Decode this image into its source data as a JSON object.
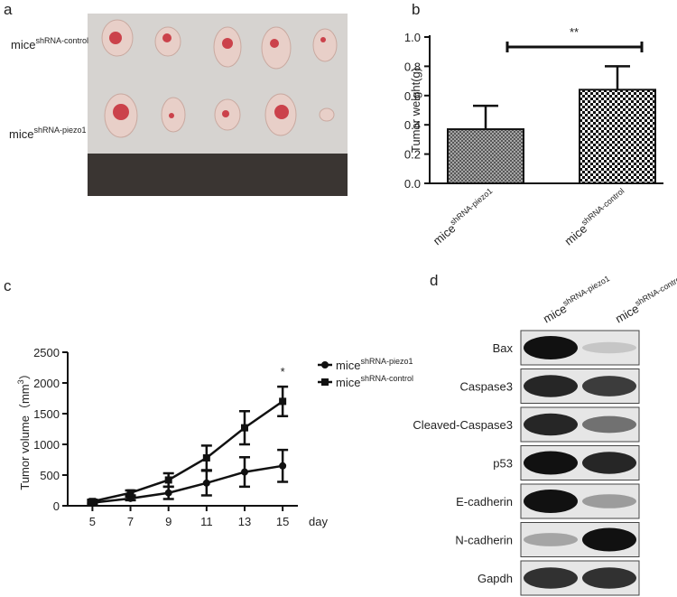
{
  "panel_labels": [
    "a",
    "b",
    "c",
    "d"
  ],
  "photo": {
    "row_labels": [
      {
        "base": "mice",
        "sup": "shRNA-control"
      },
      {
        "base": "mice",
        "sup": "shRNA-piezo1"
      }
    ]
  },
  "chart_data": [
    {
      "type": "bar",
      "ylabel": "Tumor weight(g)",
      "categories": [
        {
          "base": "mice",
          "sup": "shRNA-piezo1"
        },
        {
          "base": "mice",
          "sup": "shRNA-control"
        }
      ],
      "values": [
        0.37,
        0.64
      ],
      "errors": [
        0.16,
        0.16
      ],
      "ylim": [
        0,
        1.0
      ],
      "yticks": [
        {
          "value": 0,
          "label": "0.0"
        },
        0.2,
        0.4,
        0.6,
        0.8,
        {
          "value": 1.0,
          "label": "1.0"
        }
      ],
      "annotation": "**"
    },
    {
      "type": "line",
      "ylabel": {
        "base": "Tumor volume（mm",
        "sup": "3",
        "tail": "）"
      },
      "xlabel": "day",
      "x": [
        5,
        7,
        9,
        11,
        13,
        15
      ],
      "xlim": [
        3.7,
        15.8
      ],
      "xticks": [
        5,
        7,
        9,
        11,
        13,
        15
      ],
      "ylim": [
        0,
        2500
      ],
      "yticks": [
        0,
        500,
        1000,
        1500,
        2000,
        2500
      ],
      "series": [
        {
          "name": {
            "base": "mice",
            "sup": "shRNA-piezo1"
          },
          "marker": "circle",
          "color": "#111",
          "values": [
            50,
            120,
            210,
            370,
            550,
            650
          ],
          "errors": [
            20,
            30,
            100,
            200,
            240,
            260
          ]
        },
        {
          "name": {
            "base": "mice",
            "sup": "shRNA-control"
          },
          "marker": "square",
          "color": "#111",
          "values": [
            70,
            210,
            420,
            780,
            1270,
            1700
          ],
          "errors": [
            30,
            40,
            110,
            200,
            270,
            240
          ]
        }
      ],
      "annotation": "*"
    }
  ],
  "blot": {
    "columns": [
      {
        "base": "mice",
        "sup": "shRNA-piezo1"
      },
      {
        "base": "mice",
        "sup": "shRNA-control"
      }
    ],
    "rows": [
      "Bax",
      "Caspase3",
      "Cleaved-Caspase3",
      "p53",
      "E-cadherin",
      "N-cadherin",
      "Gapdh"
    ]
  }
}
